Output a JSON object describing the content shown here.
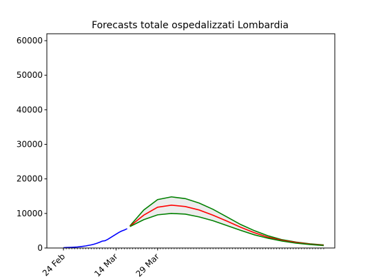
{
  "chart_data": {
    "type": "line",
    "title": "Forecasts totale ospedalizzati Lombardia",
    "xlabel": "",
    "ylabel": "",
    "x_ticks": [
      "24 Feb",
      "14 Mar",
      "29 Mar"
    ],
    "y_ticks": [
      "0",
      "10000",
      "20000",
      "30000",
      "40000",
      "50000",
      "60000"
    ],
    "ylim": [
      0,
      62000
    ],
    "grid": false,
    "legend": "none",
    "observed": {
      "color": "#0000ff",
      "x": [
        "2020-02-24",
        "2020-02-25",
        "2020-02-26",
        "2020-02-27",
        "2020-02-28",
        "2020-02-29",
        "2020-03-01",
        "2020-03-02",
        "2020-03-03",
        "2020-03-04",
        "2020-03-05",
        "2020-03-06",
        "2020-03-07",
        "2020-03-08",
        "2020-03-09",
        "2020-03-10",
        "2020-03-11",
        "2020-03-12",
        "2020-03-13",
        "2020-03-14",
        "2020-03-15",
        "2020-03-16",
        "2020-03-17",
        "2020-03-18"
      ],
      "y": [
        100,
        130,
        160,
        200,
        250,
        300,
        380,
        480,
        600,
        750,
        900,
        1100,
        1350,
        1650,
        2000,
        2100,
        2500,
        3000,
        3500,
        4000,
        4500,
        4900,
        5200,
        5600
      ]
    },
    "forecast": {
      "x": [
        "2020-03-19",
        "2020-03-24",
        "2020-03-29",
        "2020-04-03",
        "2020-04-08",
        "2020-04-13",
        "2020-04-18",
        "2020-04-23",
        "2020-04-28",
        "2020-05-03",
        "2020-05-08",
        "2020-05-13",
        "2020-05-18",
        "2020-05-23",
        "2020-05-28"
      ],
      "upper": {
        "color": "#008000",
        "y": [
          6400,
          11000,
          14000,
          14800,
          14300,
          13000,
          11200,
          9000,
          6800,
          5000,
          3500,
          2400,
          1700,
          1200,
          900
        ]
      },
      "central": {
        "color": "#ff0000",
        "y": [
          6300,
          9500,
          11800,
          12400,
          12000,
          11000,
          9500,
          7800,
          6000,
          4400,
          3100,
          2200,
          1600,
          1100,
          800
        ]
      },
      "lower": {
        "color": "#008000",
        "y": [
          6200,
          8200,
          9600,
          10000,
          9800,
          9000,
          7900,
          6500,
          5100,
          3800,
          2800,
          2000,
          1400,
          1000,
          700
        ]
      },
      "band_fill": "#ececec"
    }
  }
}
